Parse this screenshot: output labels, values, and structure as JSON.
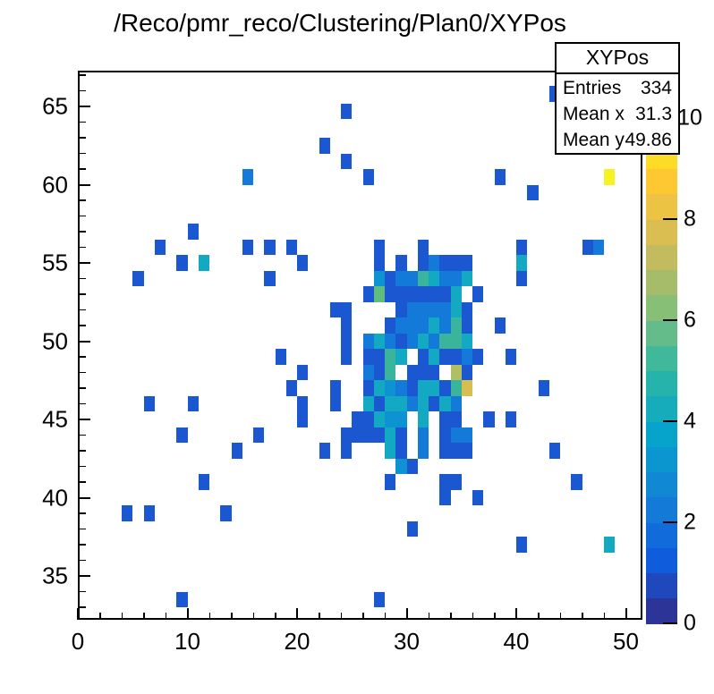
{
  "title": "/Reco/pmr_reco/Clustering/Plan0/XYPos",
  "stats": {
    "title": "XYPos",
    "rows": [
      {
        "label": "Entries",
        "value": "334"
      },
      {
        "label": "Mean x",
        "value": "31.3"
      },
      {
        "label": "Mean y",
        "value": "49.86"
      }
    ]
  },
  "chart_data": {
    "type": "heatmap",
    "title": "/Reco/pmr_reco/Clustering/Plan0/XYPos",
    "xlabel": "",
    "ylabel": "",
    "x_range": [
      0,
      51.5
    ],
    "y_range": [
      32.2,
      67.3
    ],
    "z_range": [
      0,
      10
    ],
    "grid": false,
    "x_ticks": [
      0,
      10,
      20,
      30,
      40,
      50
    ],
    "x_minor_step": 2,
    "y_ticks": [
      35,
      40,
      45,
      50,
      55,
      60,
      65
    ],
    "y_minor_step": 1,
    "palette_ticks": [
      0,
      2,
      4,
      6,
      8,
      10
    ],
    "palette_colors": [
      "#2D3498",
      "#1E48BB",
      "#0F5CDD",
      "#116BDA",
      "#137AD7",
      "#1188D4",
      "#0C96CF",
      "#06A4CA",
      "#16ACBB",
      "#26B3AC",
      "#40B99B",
      "#63BC89",
      "#87BF77",
      "#A5BD6B",
      "#C2BC5F",
      "#DABE51",
      "#ECC342",
      "#FEC832",
      "#FCDC24",
      "#FAF115"
    ],
    "content_colors": {
      "1": "#1B57D1",
      "2": "#147AD9",
      "3": "#0D93D2",
      "4": "#13A9C3",
      "5": "#3AB59C",
      "6": "#5FBC81",
      "7": "#B0BE64",
      "8": "#D8BE50",
      "9": "#F2CC3C",
      "10": "#F6F224"
    },
    "cells": [
      [
        43,
        65.8,
        1
      ],
      [
        24,
        64.7,
        1
      ],
      [
        22,
        62.5,
        1
      ],
      [
        24,
        61.5,
        1
      ],
      [
        26,
        60.5,
        1
      ],
      [
        15,
        60.5,
        2
      ],
      [
        38,
        60.5,
        1
      ],
      [
        48,
        60.5,
        10
      ],
      [
        41,
        59.5,
        1
      ],
      [
        10,
        57,
        1
      ],
      [
        7,
        56,
        1
      ],
      [
        15,
        56,
        1
      ],
      [
        17,
        56,
        1
      ],
      [
        19,
        56,
        1
      ],
      [
        27,
        56,
        1
      ],
      [
        31,
        56,
        1
      ],
      [
        40,
        56,
        1
      ],
      [
        46,
        56,
        1
      ],
      [
        47,
        56,
        2
      ],
      [
        9,
        55,
        1
      ],
      [
        11,
        55,
        4
      ],
      [
        20,
        55,
        1
      ],
      [
        27,
        55,
        1
      ],
      [
        29,
        55,
        1
      ],
      [
        31,
        55,
        1
      ],
      [
        32,
        55,
        2
      ],
      [
        33,
        55,
        1
      ],
      [
        34,
        55,
        1
      ],
      [
        35,
        55,
        1
      ],
      [
        40,
        55,
        4
      ],
      [
        5,
        54,
        1
      ],
      [
        17,
        54,
        1
      ],
      [
        27,
        54,
        3
      ],
      [
        28,
        54,
        1
      ],
      [
        29,
        54,
        2
      ],
      [
        30,
        54,
        2
      ],
      [
        31,
        54,
        5
      ],
      [
        32,
        54,
        4
      ],
      [
        33,
        54,
        2
      ],
      [
        34,
        54,
        2
      ],
      [
        35,
        54,
        4
      ],
      [
        40,
        54,
        1
      ],
      [
        26,
        53,
        1
      ],
      [
        27,
        53,
        6
      ],
      [
        28,
        53,
        1
      ],
      [
        29,
        53,
        1
      ],
      [
        30,
        53,
        1
      ],
      [
        31,
        53,
        1
      ],
      [
        32,
        53,
        1
      ],
      [
        33,
        53,
        1
      ],
      [
        34,
        53,
        4
      ],
      [
        36,
        53,
        1
      ],
      [
        23,
        52,
        1
      ],
      [
        24,
        52,
        1
      ],
      [
        29,
        52,
        1
      ],
      [
        30,
        52,
        2
      ],
      [
        31,
        52,
        2
      ],
      [
        32,
        52,
        2
      ],
      [
        33,
        52,
        2
      ],
      [
        34,
        52,
        4
      ],
      [
        35,
        52,
        1
      ],
      [
        24,
        51,
        1
      ],
      [
        28,
        51,
        1
      ],
      [
        29,
        51,
        2
      ],
      [
        30,
        51,
        2
      ],
      [
        31,
        51,
        2
      ],
      [
        32,
        51,
        4
      ],
      [
        33,
        51,
        2
      ],
      [
        34,
        51,
        5
      ],
      [
        35,
        51,
        1
      ],
      [
        38,
        51,
        1
      ],
      [
        24,
        50,
        1
      ],
      [
        26,
        50,
        2
      ],
      [
        27,
        50,
        4
      ],
      [
        28,
        50,
        2
      ],
      [
        29,
        50,
        1
      ],
      [
        30,
        50,
        2
      ],
      [
        31,
        50,
        4
      ],
      [
        32,
        50,
        2
      ],
      [
        33,
        50,
        5
      ],
      [
        34,
        50,
        5
      ],
      [
        35,
        50,
        4
      ],
      [
        18,
        49,
        1
      ],
      [
        24,
        49,
        1
      ],
      [
        26,
        49,
        1
      ],
      [
        27,
        49,
        1
      ],
      [
        28,
        49,
        5
      ],
      [
        29,
        49,
        4
      ],
      [
        31,
        49,
        1
      ],
      [
        32,
        49,
        4
      ],
      [
        33,
        49,
        1
      ],
      [
        34,
        49,
        1
      ],
      [
        35,
        49,
        2
      ],
      [
        36,
        49,
        1
      ],
      [
        39,
        49,
        1
      ],
      [
        20,
        48,
        1
      ],
      [
        26,
        48,
        2
      ],
      [
        27,
        48,
        1
      ],
      [
        28,
        48,
        5
      ],
      [
        30,
        48,
        1
      ],
      [
        31,
        48,
        1
      ],
      [
        32,
        48,
        1
      ],
      [
        34,
        48,
        7
      ],
      [
        35,
        48,
        1
      ],
      [
        19,
        47,
        1
      ],
      [
        23,
        47,
        1
      ],
      [
        26,
        47,
        1
      ],
      [
        27,
        47,
        4
      ],
      [
        28,
        47,
        3
      ],
      [
        29,
        47,
        2
      ],
      [
        30,
        47,
        1
      ],
      [
        31,
        47,
        4
      ],
      [
        32,
        47,
        4
      ],
      [
        33,
        47,
        1
      ],
      [
        34,
        47,
        5
      ],
      [
        35,
        47,
        8
      ],
      [
        42,
        47,
        1
      ],
      [
        6,
        46,
        1
      ],
      [
        10,
        46,
        1
      ],
      [
        20,
        46,
        1
      ],
      [
        23,
        46,
        1
      ],
      [
        26,
        46,
        4
      ],
      [
        27,
        46,
        1
      ],
      [
        28,
        46,
        4
      ],
      [
        29,
        46,
        4
      ],
      [
        30,
        46,
        2
      ],
      [
        31,
        46,
        4
      ],
      [
        32,
        46,
        1
      ],
      [
        33,
        46,
        4
      ],
      [
        34,
        46,
        2
      ],
      [
        20,
        45,
        1
      ],
      [
        25,
        45,
        1
      ],
      [
        26,
        45,
        1
      ],
      [
        27,
        45,
        4
      ],
      [
        28,
        45,
        3
      ],
      [
        29,
        45,
        3
      ],
      [
        31,
        45,
        4
      ],
      [
        33,
        45,
        1
      ],
      [
        34,
        45,
        1
      ],
      [
        37,
        45,
        1
      ],
      [
        39,
        45,
        1
      ],
      [
        9,
        44,
        1
      ],
      [
        16,
        44,
        1
      ],
      [
        24,
        44,
        1
      ],
      [
        25,
        44,
        1
      ],
      [
        26,
        44,
        1
      ],
      [
        27,
        44,
        1
      ],
      [
        28,
        44,
        4
      ],
      [
        29,
        44,
        1
      ],
      [
        31,
        44,
        2
      ],
      [
        33,
        44,
        1
      ],
      [
        34,
        44,
        2
      ],
      [
        35,
        44,
        2
      ],
      [
        14,
        43,
        1
      ],
      [
        22,
        43,
        1
      ],
      [
        24,
        43,
        1
      ],
      [
        28,
        43,
        4
      ],
      [
        29,
        43,
        1
      ],
      [
        31,
        43,
        2
      ],
      [
        33,
        43,
        1
      ],
      [
        34,
        43,
        1
      ],
      [
        35,
        43,
        1
      ],
      [
        43,
        43,
        1
      ],
      [
        29,
        42,
        3
      ],
      [
        30,
        42,
        1
      ],
      [
        11,
        41,
        1
      ],
      [
        28,
        41,
        1
      ],
      [
        33,
        41,
        1
      ],
      [
        34,
        41,
        1
      ],
      [
        45,
        41,
        1
      ],
      [
        33,
        40,
        1
      ],
      [
        36,
        40,
        1
      ],
      [
        4,
        39,
        1
      ],
      [
        6,
        39,
        1
      ],
      [
        13,
        39,
        1
      ],
      [
        30,
        38,
        1
      ],
      [
        40,
        37,
        1
      ],
      [
        48,
        37,
        4
      ],
      [
        9,
        33.5,
        1
      ],
      [
        27,
        33.5,
        1
      ]
    ]
  }
}
